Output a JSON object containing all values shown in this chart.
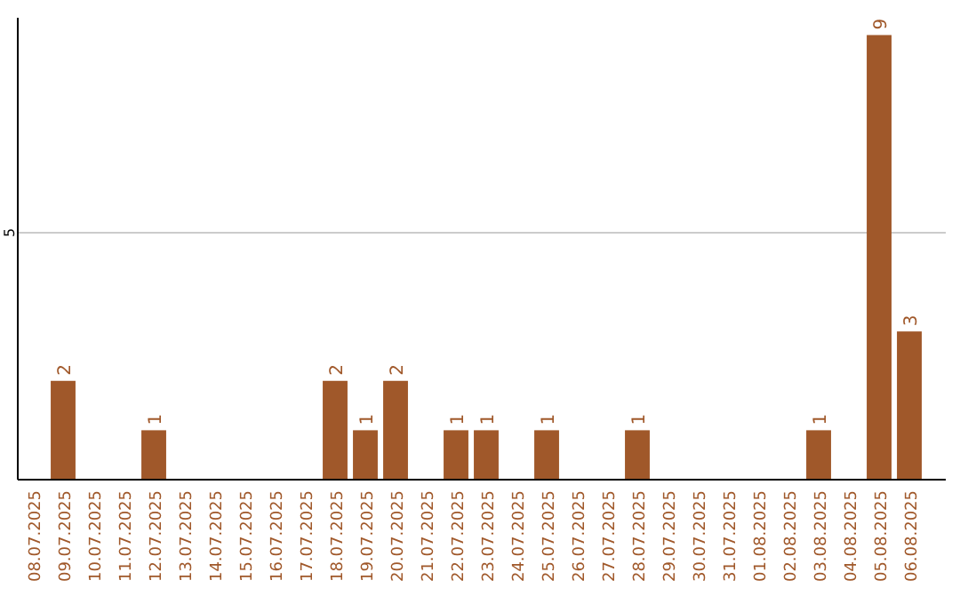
{
  "chart_data": {
    "type": "bar",
    "categories": [
      "08.07.2025",
      "09.07.2025",
      "10.07.2025",
      "11.07.2025",
      "12.07.2025",
      "13.07.2025",
      "14.07.2025",
      "15.07.2025",
      "16.07.2025",
      "17.07.2025",
      "18.07.2025",
      "19.07.2025",
      "20.07.2025",
      "21.07.2025",
      "22.07.2025",
      "23.07.2025",
      "24.07.2025",
      "25.07.2025",
      "26.07.2025",
      "27.07.2025",
      "28.07.2025",
      "29.07.2025",
      "30.07.2025",
      "31.07.2025",
      "01.08.2025",
      "02.08.2025",
      "03.08.2025",
      "04.08.2025",
      "05.08.2025",
      "06.08.2025"
    ],
    "values": [
      0,
      2,
      0,
      0,
      1,
      0,
      0,
      0,
      0,
      0,
      2,
      1,
      2,
      0,
      1,
      1,
      0,
      1,
      0,
      0,
      1,
      0,
      0,
      0,
      0,
      0,
      1,
      0,
      9,
      3
    ],
    "value_labels": [
      null,
      "2",
      null,
      null,
      "1",
      null,
      null,
      null,
      null,
      null,
      "2",
      "1",
      "2",
      null,
      "1",
      "1",
      null,
      "1",
      null,
      null,
      "1",
      null,
      null,
      null,
      null,
      null,
      "1",
      null,
      "9",
      "3"
    ],
    "color": "#a0582a",
    "ylim": [
      0,
      9.35
    ],
    "yticks": [
      5
    ],
    "grid": "y"
  }
}
